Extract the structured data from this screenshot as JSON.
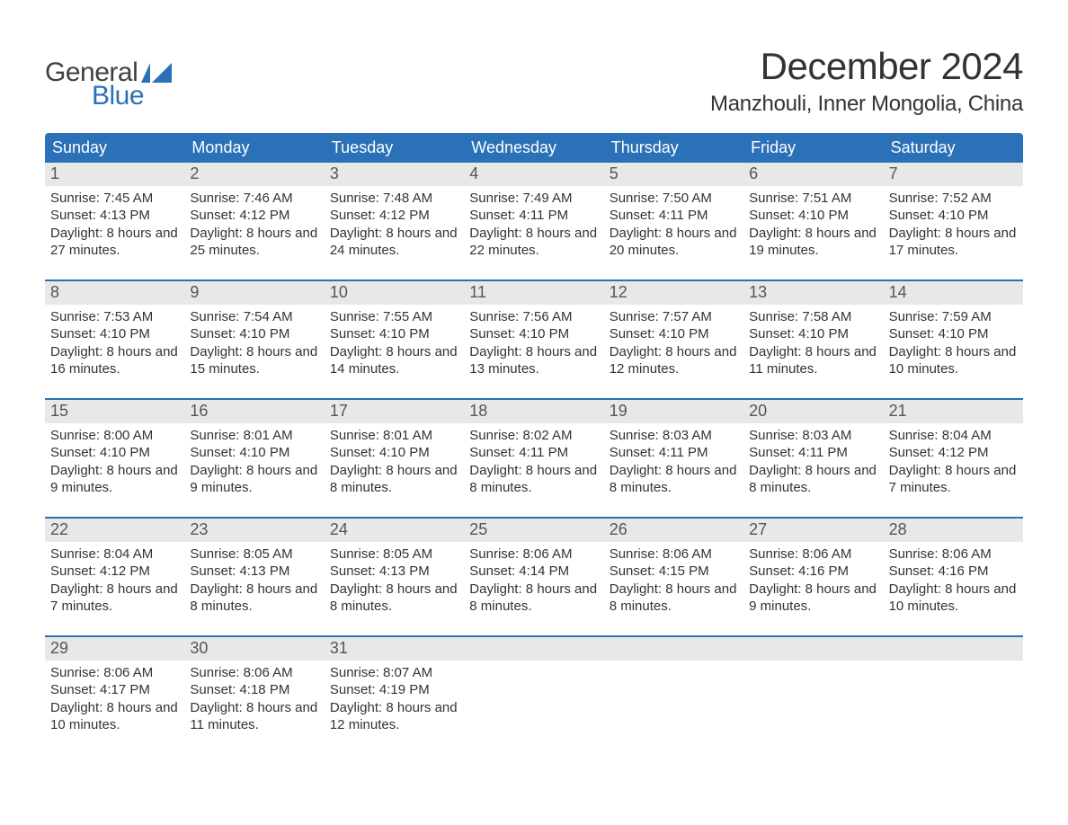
{
  "colors": {
    "accent": "#2a71b8",
    "daynum_bg": "#e8e8e8",
    "text": "#333333",
    "background": "#ffffff"
  },
  "logo": {
    "top": "General",
    "bottom": "Blue"
  },
  "title": "December 2024",
  "location": "Manzhouli, Inner Mongolia, China",
  "weekdays": [
    "Sunday",
    "Monday",
    "Tuesday",
    "Wednesday",
    "Thursday",
    "Friday",
    "Saturday"
  ],
  "labels": {
    "sunrise": "Sunrise:",
    "sunset": "Sunset:",
    "daylight": "Daylight:"
  },
  "grid": {
    "columns": 7,
    "rows": 5
  },
  "fonts": {
    "month_title_pt": 42,
    "location_pt": 24,
    "weekday_pt": 18,
    "daynum_pt": 18,
    "cell_pt": 15
  },
  "weeks": [
    [
      {
        "n": "1",
        "sunrise": "7:45 AM",
        "sunset": "4:13 PM",
        "daylight": "8 hours and 27 minutes."
      },
      {
        "n": "2",
        "sunrise": "7:46 AM",
        "sunset": "4:12 PM",
        "daylight": "8 hours and 25 minutes."
      },
      {
        "n": "3",
        "sunrise": "7:48 AM",
        "sunset": "4:12 PM",
        "daylight": "8 hours and 24 minutes."
      },
      {
        "n": "4",
        "sunrise": "7:49 AM",
        "sunset": "4:11 PM",
        "daylight": "8 hours and 22 minutes."
      },
      {
        "n": "5",
        "sunrise": "7:50 AM",
        "sunset": "4:11 PM",
        "daylight": "8 hours and 20 minutes."
      },
      {
        "n": "6",
        "sunrise": "7:51 AM",
        "sunset": "4:10 PM",
        "daylight": "8 hours and 19 minutes."
      },
      {
        "n": "7",
        "sunrise": "7:52 AM",
        "sunset": "4:10 PM",
        "daylight": "8 hours and 17 minutes."
      }
    ],
    [
      {
        "n": "8",
        "sunrise": "7:53 AM",
        "sunset": "4:10 PM",
        "daylight": "8 hours and 16 minutes."
      },
      {
        "n": "9",
        "sunrise": "7:54 AM",
        "sunset": "4:10 PM",
        "daylight": "8 hours and 15 minutes."
      },
      {
        "n": "10",
        "sunrise": "7:55 AM",
        "sunset": "4:10 PM",
        "daylight": "8 hours and 14 minutes."
      },
      {
        "n": "11",
        "sunrise": "7:56 AM",
        "sunset": "4:10 PM",
        "daylight": "8 hours and 13 minutes."
      },
      {
        "n": "12",
        "sunrise": "7:57 AM",
        "sunset": "4:10 PM",
        "daylight": "8 hours and 12 minutes."
      },
      {
        "n": "13",
        "sunrise": "7:58 AM",
        "sunset": "4:10 PM",
        "daylight": "8 hours and 11 minutes."
      },
      {
        "n": "14",
        "sunrise": "7:59 AM",
        "sunset": "4:10 PM",
        "daylight": "8 hours and 10 minutes."
      }
    ],
    [
      {
        "n": "15",
        "sunrise": "8:00 AM",
        "sunset": "4:10 PM",
        "daylight": "8 hours and 9 minutes."
      },
      {
        "n": "16",
        "sunrise": "8:01 AM",
        "sunset": "4:10 PM",
        "daylight": "8 hours and 9 minutes."
      },
      {
        "n": "17",
        "sunrise": "8:01 AM",
        "sunset": "4:10 PM",
        "daylight": "8 hours and 8 minutes."
      },
      {
        "n": "18",
        "sunrise": "8:02 AM",
        "sunset": "4:11 PM",
        "daylight": "8 hours and 8 minutes."
      },
      {
        "n": "19",
        "sunrise": "8:03 AM",
        "sunset": "4:11 PM",
        "daylight": "8 hours and 8 minutes."
      },
      {
        "n": "20",
        "sunrise": "8:03 AM",
        "sunset": "4:11 PM",
        "daylight": "8 hours and 8 minutes."
      },
      {
        "n": "21",
        "sunrise": "8:04 AM",
        "sunset": "4:12 PM",
        "daylight": "8 hours and 7 minutes."
      }
    ],
    [
      {
        "n": "22",
        "sunrise": "8:04 AM",
        "sunset": "4:12 PM",
        "daylight": "8 hours and 7 minutes."
      },
      {
        "n": "23",
        "sunrise": "8:05 AM",
        "sunset": "4:13 PM",
        "daylight": "8 hours and 8 minutes."
      },
      {
        "n": "24",
        "sunrise": "8:05 AM",
        "sunset": "4:13 PM",
        "daylight": "8 hours and 8 minutes."
      },
      {
        "n": "25",
        "sunrise": "8:06 AM",
        "sunset": "4:14 PM",
        "daylight": "8 hours and 8 minutes."
      },
      {
        "n": "26",
        "sunrise": "8:06 AM",
        "sunset": "4:15 PM",
        "daylight": "8 hours and 8 minutes."
      },
      {
        "n": "27",
        "sunrise": "8:06 AM",
        "sunset": "4:16 PM",
        "daylight": "8 hours and 9 minutes."
      },
      {
        "n": "28",
        "sunrise": "8:06 AM",
        "sunset": "4:16 PM",
        "daylight": "8 hours and 10 minutes."
      }
    ],
    [
      {
        "n": "29",
        "sunrise": "8:06 AM",
        "sunset": "4:17 PM",
        "daylight": "8 hours and 10 minutes."
      },
      {
        "n": "30",
        "sunrise": "8:06 AM",
        "sunset": "4:18 PM",
        "daylight": "8 hours and 11 minutes."
      },
      {
        "n": "31",
        "sunrise": "8:07 AM",
        "sunset": "4:19 PM",
        "daylight": "8 hours and 12 minutes."
      },
      {
        "empty": true
      },
      {
        "empty": true
      },
      {
        "empty": true
      },
      {
        "empty": true
      }
    ]
  ]
}
